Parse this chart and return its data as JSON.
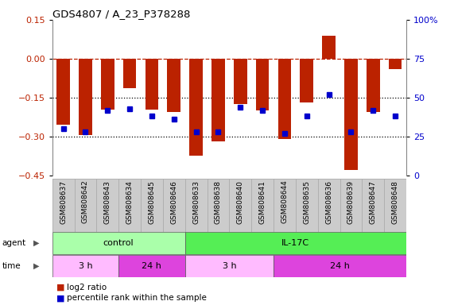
{
  "title": "GDS4807 / A_23_P378288",
  "samples": [
    "GSM808637",
    "GSM808642",
    "GSM808643",
    "GSM808634",
    "GSM808645",
    "GSM808646",
    "GSM808633",
    "GSM808638",
    "GSM808640",
    "GSM808641",
    "GSM808644",
    "GSM808635",
    "GSM808636",
    "GSM808639",
    "GSM808647",
    "GSM808648"
  ],
  "log2_ratio": [
    -0.255,
    -0.295,
    -0.195,
    -0.115,
    -0.195,
    -0.205,
    -0.375,
    -0.32,
    -0.175,
    -0.2,
    -0.31,
    -0.17,
    0.09,
    -0.43,
    -0.205,
    -0.04
  ],
  "percentile_rank": [
    30,
    28,
    42,
    43,
    38,
    36,
    28,
    28,
    44,
    42,
    27,
    38,
    52,
    28,
    42,
    38
  ],
  "bar_color": "#bb2200",
  "dot_color": "#0000cc",
  "ylim_left": [
    -0.45,
    0.15
  ],
  "ylim_right": [
    0,
    100
  ],
  "yticks_left": [
    -0.45,
    -0.3,
    -0.15,
    0.0,
    0.15
  ],
  "yticks_right": [
    0,
    25,
    50,
    75,
    100
  ],
  "ytick_labels_right": [
    "0",
    "25",
    "50",
    "75",
    "100%"
  ],
  "hline_dashed": 0.0,
  "hlines_dotted": [
    -0.15,
    -0.3
  ],
  "agent_labels": [
    {
      "label": "control",
      "start": 0,
      "end": 6,
      "color": "#aaffaa"
    },
    {
      "label": "IL-17C",
      "start": 6,
      "end": 16,
      "color": "#55ee55"
    }
  ],
  "time_labels": [
    {
      "label": "3 h",
      "start": 0,
      "end": 3,
      "color": "#ffbbff"
    },
    {
      "label": "24 h",
      "start": 3,
      "end": 6,
      "color": "#dd44dd"
    },
    {
      "label": "3 h",
      "start": 6,
      "end": 10,
      "color": "#ffbbff"
    },
    {
      "label": "24 h",
      "start": 10,
      "end": 16,
      "color": "#dd44dd"
    }
  ],
  "legend_red": "log2 ratio",
  "legend_blue": "percentile rank within the sample",
  "background_color": "#ffffff",
  "plot_bg_color": "#ffffff",
  "sample_bg_color": "#cccccc",
  "sample_border_color": "#aaaaaa"
}
